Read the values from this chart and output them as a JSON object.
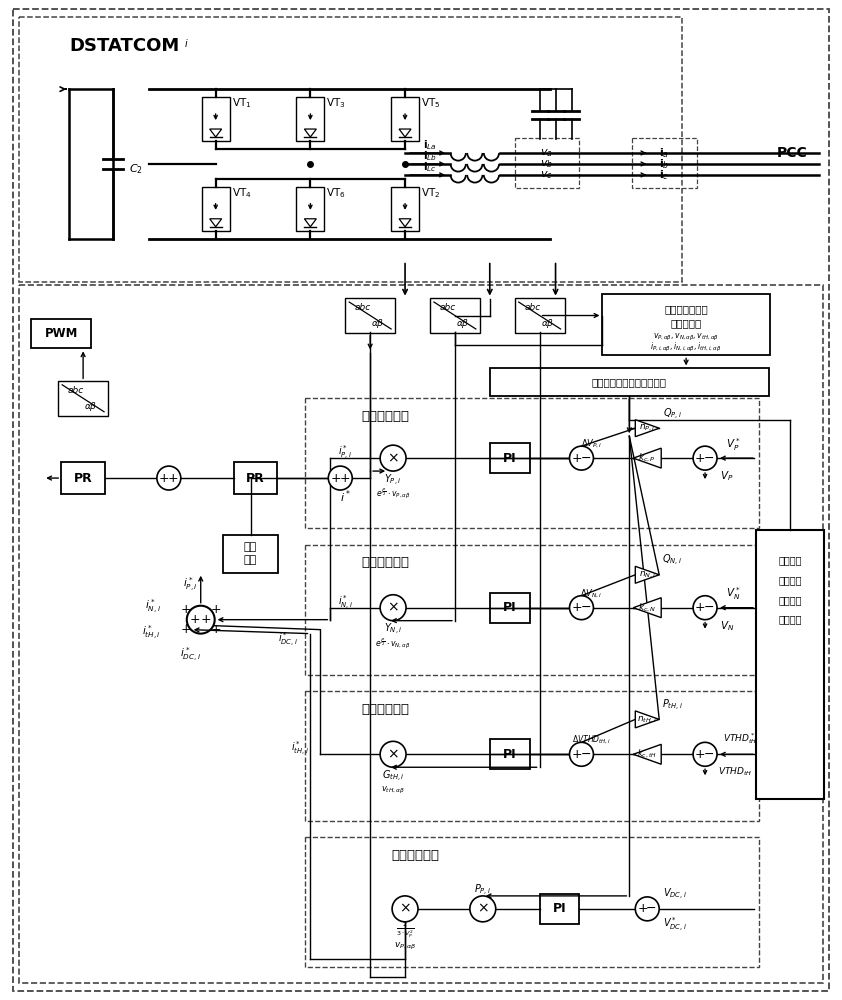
{
  "figsize": [
    8.42,
    10.0
  ],
  "dpi": 100,
  "labels": {
    "dstatcom": "DSTATCOM",
    "dstatcom_sub": "i",
    "pcc": "PCC",
    "pwm": "PWM",
    "pr": "PR",
    "pi": "PI",
    "pos_comp": "正序电压补偃",
    "neg_comp": "负序电压补偃",
    "harm_comp": "谐波电压补偃",
    "dc_ctrl": "直流电压控制",
    "extract_l1": "电压电流正序负",
    "extract_l2": "序谐波提取",
    "power_calc": "正序、负序、谐波功率计算",
    "amp_ctrl_l1": "幅値",
    "amp_ctrl_l2": "控制",
    "ref_l1": "正序、负",
    "ref_l2": "序、谐波",
    "ref_l3": "含有率参",
    "ref_l4": "考値计算",
    "out_l1": "$v_{P,\\alpha\\beta}, v_{N,\\alpha\\beta}, v_{tH,\\alpha\\beta}$",
    "out_l2": "$i_{P,i,\\alpha\\beta}, i_{N,i,\\alpha\\beta}, i_{tH,i,\\alpha\\beta}$"
  }
}
